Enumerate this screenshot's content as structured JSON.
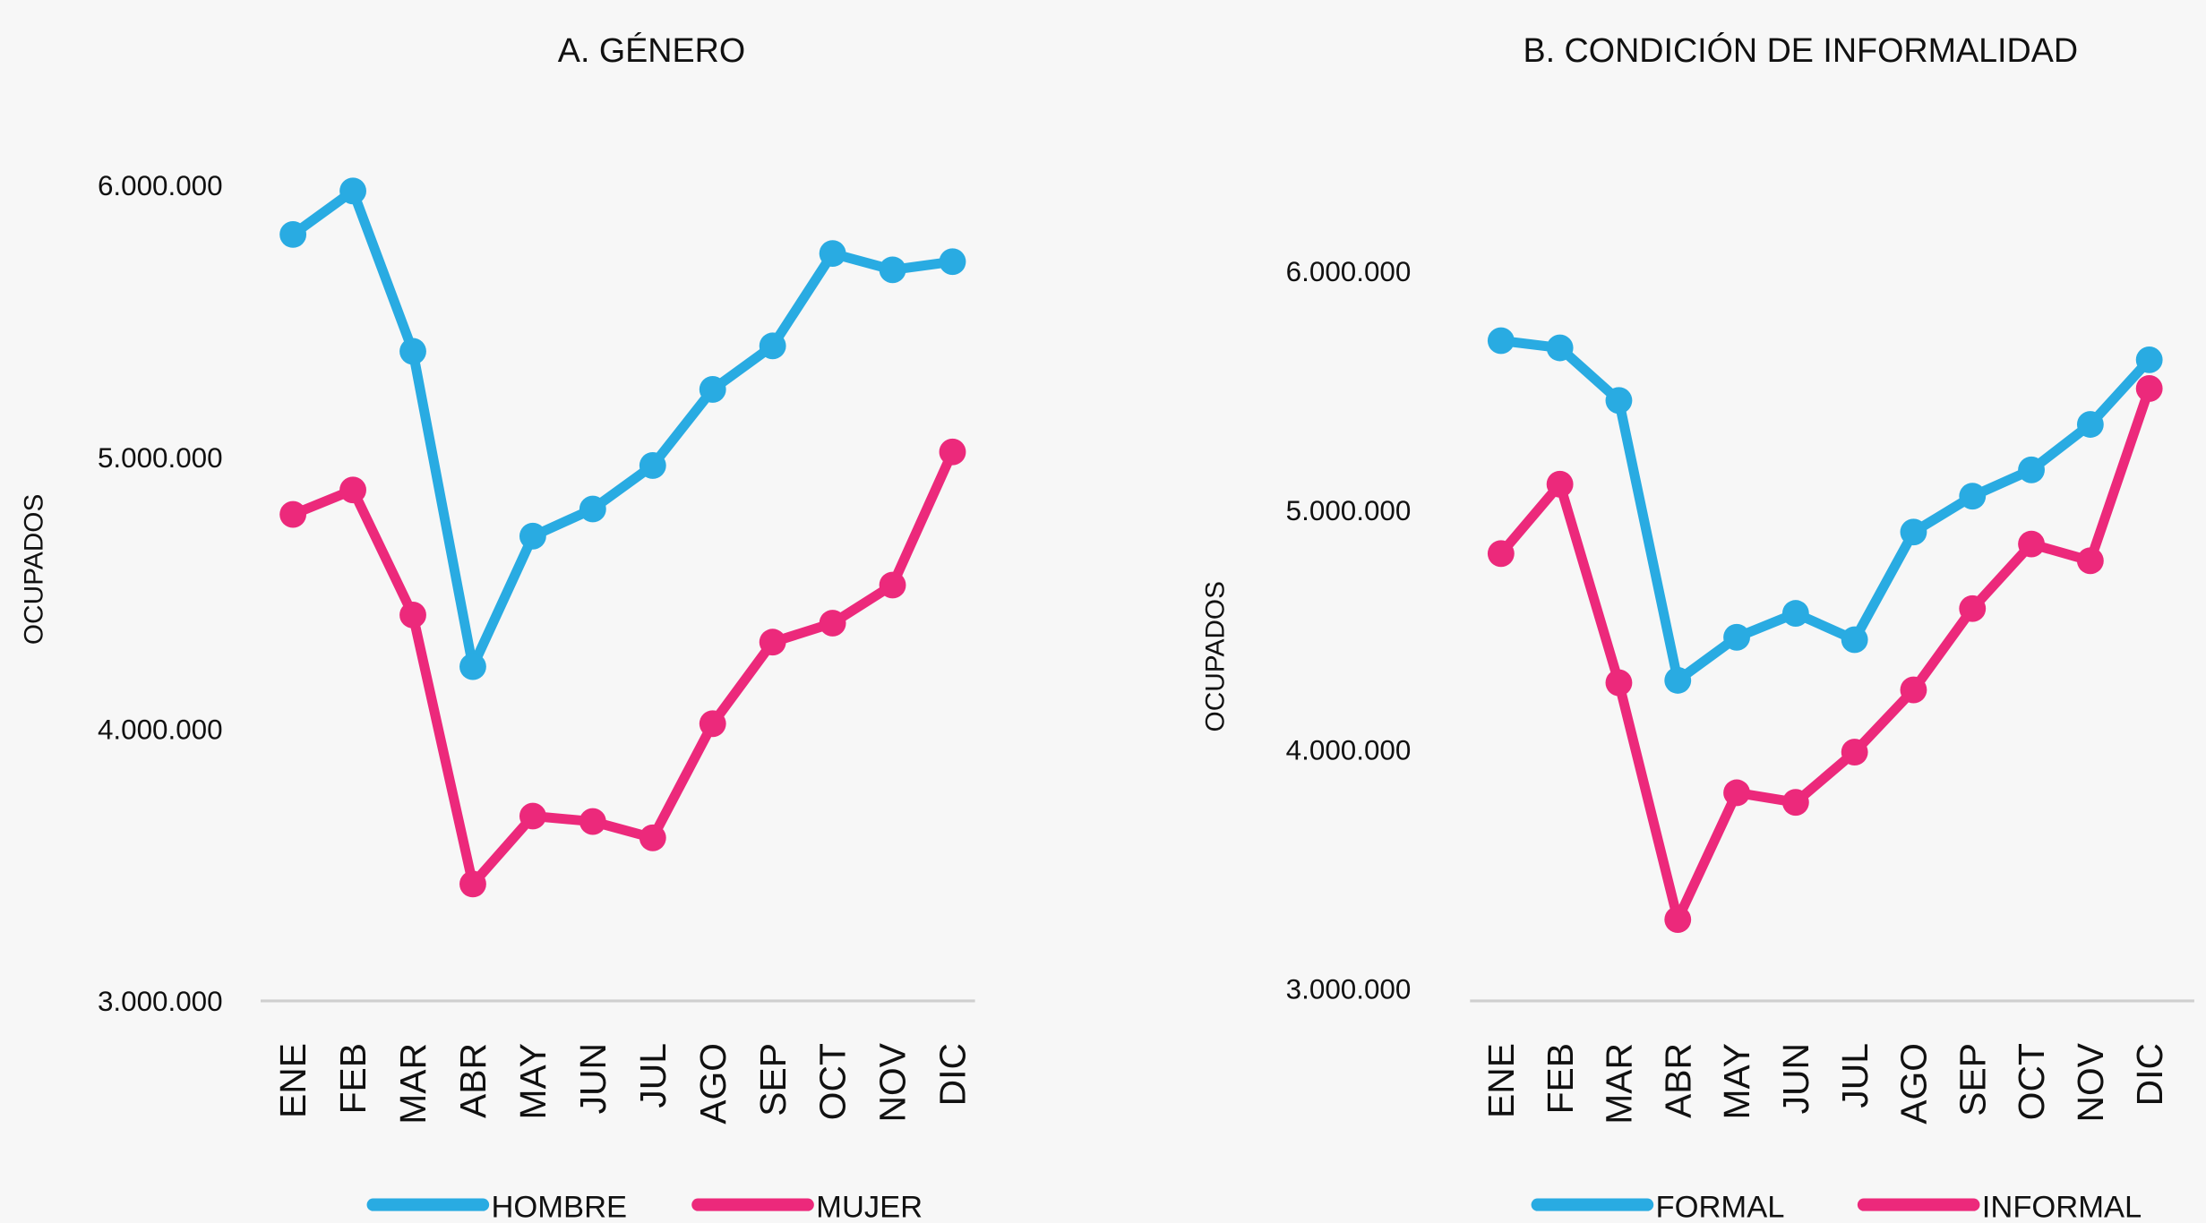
{
  "chart_data": [
    {
      "type": "line",
      "title": "A. GÉNERO",
      "y_label": "OCUPADOS",
      "categories": [
        "ENE",
        "FEB",
        "MAR",
        "ABR",
        "MAY",
        "JUN",
        "JUL",
        "AGO",
        "SEP",
        "OCT",
        "NOV",
        "DIC"
      ],
      "series": [
        {
          "name": "HOMBRE",
          "color": "#29abe2",
          "values": [
            5820000,
            5980000,
            5390000,
            4230000,
            4710000,
            4810000,
            4970000,
            5250000,
            5410000,
            5750000,
            5690000,
            5720000
          ]
        },
        {
          "name": "MUJER",
          "color": "#ec297b",
          "values": [
            4790000,
            4880000,
            4420000,
            3430000,
            3680000,
            3660000,
            3600000,
            4020000,
            4320000,
            4390000,
            4530000,
            5020000
          ]
        }
      ],
      "ylim": [
        3000000,
        6000000
      ],
      "yticks": [
        {
          "value": 3000000,
          "label": "3.000.000"
        },
        {
          "value": 4000000,
          "label": "4.000.000"
        },
        {
          "value": 5000000,
          "label": "5.000.000"
        },
        {
          "value": 6000000,
          "label": "6.000.000"
        }
      ],
      "grid": false,
      "legend": "bottom"
    },
    {
      "type": "line",
      "title": "B. CONDICIÓN DE INFORMALIDAD",
      "y_label": "OCUPADOS",
      "categories": [
        "ENE",
        "FEB",
        "MAR",
        "ABR",
        "MAY",
        "JUN",
        "JUL",
        "AGO",
        "SEP",
        "OCT",
        "NOV",
        "DIC"
      ],
      "series": [
        {
          "name": "FORMAL",
          "color": "#29abe2",
          "values": [
            5710000,
            5680000,
            5460000,
            4290000,
            4470000,
            4570000,
            4460000,
            4910000,
            5060000,
            5170000,
            5360000,
            5630000
          ]
        },
        {
          "name": "INFORMAL",
          "color": "#ec297b",
          "values": [
            4820000,
            5110000,
            4280000,
            3290000,
            3820000,
            3780000,
            3990000,
            4250000,
            4590000,
            4860000,
            4790000,
            5510000
          ]
        }
      ],
      "ylim": [
        2950000,
        6000000
      ],
      "yticks": [
        {
          "value": 3000000,
          "label": "3.000.000"
        },
        {
          "value": 4000000,
          "label": "4.000.000"
        },
        {
          "value": 5000000,
          "label": "5.000.000"
        },
        {
          "value": 6000000,
          "label": "6.000.000"
        }
      ],
      "grid": false,
      "legend": "bottom"
    }
  ]
}
